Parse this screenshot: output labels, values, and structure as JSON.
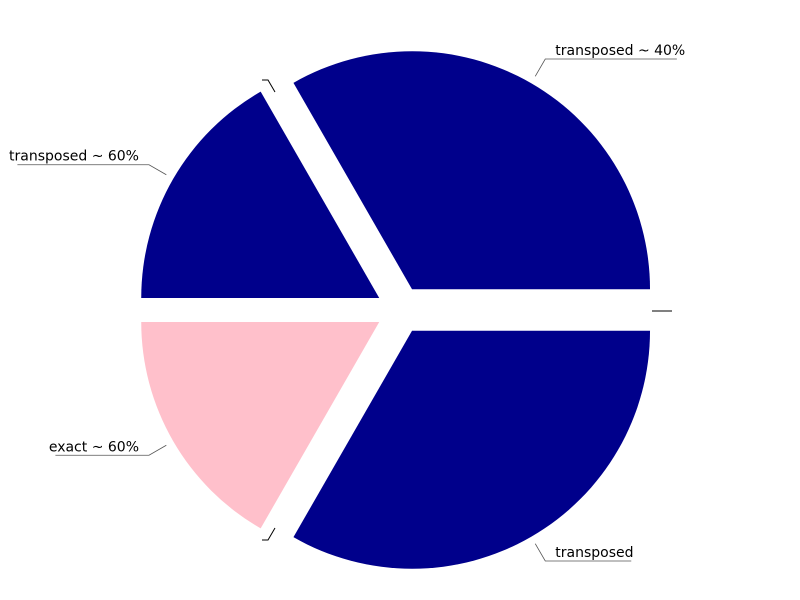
{
  "chart_data": {
    "type": "pie",
    "slices": [
      {
        "label": "transposed ~ 40%",
        "value": 33.3,
        "color": "#00008b"
      },
      {
        "label": "transposed ~ 60%",
        "value": 16.7,
        "color": "#00008b"
      },
      {
        "label": "exact ~ 60%",
        "value": 16.7,
        "color": "#ffc0cb"
      },
      {
        "label": "transposed",
        "value": 33.3,
        "color": "#00008b"
      }
    ],
    "start_angle_deg": 0,
    "direction": "counterclockwise",
    "exploded": true,
    "legend": "none",
    "title": ""
  }
}
